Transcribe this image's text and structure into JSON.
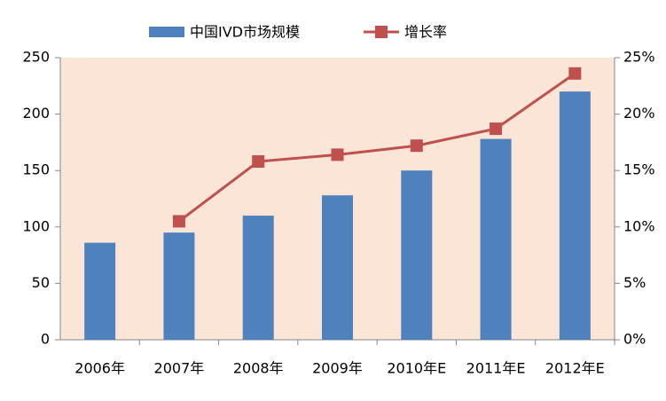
{
  "chart_data": {
    "type": "bar",
    "categories": [
      "2006年",
      "2007年",
      "2008年",
      "2009年",
      "2010年E",
      "2011年E",
      "2012年E"
    ],
    "series": [
      {
        "name": "中国IVD市场规模",
        "type": "bar",
        "color": "#4f81bd",
        "values": [
          86,
          95,
          110,
          128,
          150,
          178,
          220
        ]
      },
      {
        "name": "增长率",
        "type": "line",
        "axis": "y2",
        "color": "#c0504d",
        "values": [
          null,
          10.5,
          15.8,
          16.4,
          17.2,
          18.7,
          23.6
        ]
      }
    ],
    "ylim": [
      0,
      250
    ],
    "yticks": [
      0,
      50,
      100,
      150,
      200,
      250
    ],
    "y2lim": [
      0,
      25
    ],
    "y2ticks": [
      {
        "value": 0,
        "label": "0%"
      },
      {
        "value": 5,
        "label": "5%"
      },
      {
        "value": 10,
        "label": "10%"
      },
      {
        "value": 15,
        "label": "15%"
      },
      {
        "value": 20,
        "label": "20%"
      },
      {
        "value": 25,
        "label": "25%"
      }
    ],
    "plot_background": "#fbe5d6",
    "legend": "top"
  }
}
